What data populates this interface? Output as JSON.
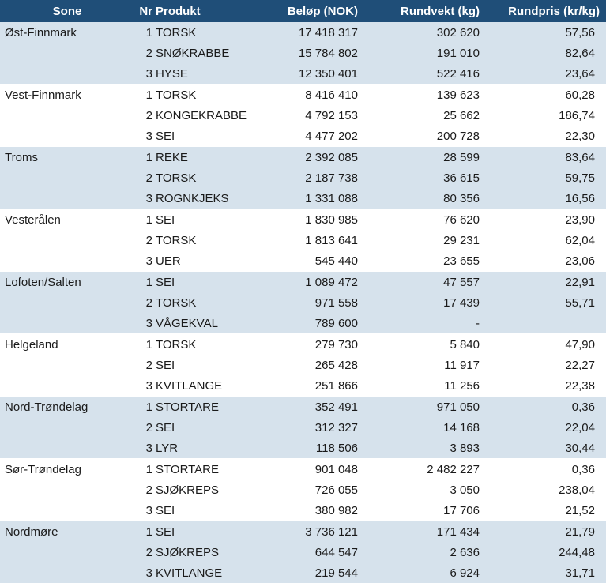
{
  "headers": {
    "sone": "Sone",
    "nr": "Nr",
    "produkt": "Produkt",
    "belop": "Beløp (NOK)",
    "rundvekt": "Rundvekt (kg)",
    "rundpris": "Rundpris (kr/kg)"
  },
  "zones": [
    {
      "sone": "Øst-Finnmark",
      "rows": [
        {
          "nr": "1",
          "produkt": "TORSK",
          "belop": "17 418 317",
          "rundvekt": "302 620",
          "rundpris": "57,56"
        },
        {
          "nr": "2",
          "produkt": "SNØKRABBE",
          "belop": "15 784 802",
          "rundvekt": "191 010",
          "rundpris": "82,64"
        },
        {
          "nr": "3",
          "produkt": "HYSE",
          "belop": "12 350 401",
          "rundvekt": "522 416",
          "rundpris": "23,64"
        }
      ]
    },
    {
      "sone": "Vest-Finnmark",
      "rows": [
        {
          "nr": "1",
          "produkt": "TORSK",
          "belop": "8 416 410",
          "rundvekt": "139 623",
          "rundpris": "60,28"
        },
        {
          "nr": "2",
          "produkt": "KONGEKRABBE",
          "belop": "4 792 153",
          "rundvekt": "25 662",
          "rundpris": "186,74"
        },
        {
          "nr": "3",
          "produkt": "SEI",
          "belop": "4 477 202",
          "rundvekt": "200 728",
          "rundpris": "22,30"
        }
      ]
    },
    {
      "sone": "Troms",
      "rows": [
        {
          "nr": "1",
          "produkt": "REKE",
          "belop": "2 392 085",
          "rundvekt": "28 599",
          "rundpris": "83,64"
        },
        {
          "nr": "2",
          "produkt": "TORSK",
          "belop": "2 187 738",
          "rundvekt": "36 615",
          "rundpris": "59,75"
        },
        {
          "nr": "3",
          "produkt": "ROGNKJEKS",
          "belop": "1 331 088",
          "rundvekt": "80 356",
          "rundpris": "16,56"
        }
      ]
    },
    {
      "sone": "Vesterålen",
      "rows": [
        {
          "nr": "1",
          "produkt": "SEI",
          "belop": "1 830 985",
          "rundvekt": "76 620",
          "rundpris": "23,90"
        },
        {
          "nr": "2",
          "produkt": "TORSK",
          "belop": "1 813 641",
          "rundvekt": "29 231",
          "rundpris": "62,04"
        },
        {
          "nr": "3",
          "produkt": "UER",
          "belop": "545 440",
          "rundvekt": "23 655",
          "rundpris": "23,06"
        }
      ]
    },
    {
      "sone": "Lofoten/Salten",
      "rows": [
        {
          "nr": "1",
          "produkt": "SEI",
          "belop": "1 089 472",
          "rundvekt": "47 557",
          "rundpris": "22,91"
        },
        {
          "nr": "2",
          "produkt": "TORSK",
          "belop": "971 558",
          "rundvekt": "17 439",
          "rundpris": "55,71"
        },
        {
          "nr": "3",
          "produkt": "VÅGEKVAL",
          "belop": "789 600",
          "rundvekt": "-",
          "rundpris": ""
        }
      ]
    },
    {
      "sone": "Helgeland",
      "rows": [
        {
          "nr": "1",
          "produkt": "TORSK",
          "belop": "279 730",
          "rundvekt": "5 840",
          "rundpris": "47,90"
        },
        {
          "nr": "2",
          "produkt": "SEI",
          "belop": "265 428",
          "rundvekt": "11 917",
          "rundpris": "22,27"
        },
        {
          "nr": "3",
          "produkt": "KVITLANGE",
          "belop": "251 866",
          "rundvekt": "11 256",
          "rundpris": "22,38"
        }
      ]
    },
    {
      "sone": "Nord-Trøndelag",
      "rows": [
        {
          "nr": "1",
          "produkt": "STORTARE",
          "belop": "352 491",
          "rundvekt": "971 050",
          "rundpris": "0,36"
        },
        {
          "nr": "2",
          "produkt": "SEI",
          "belop": "312 327",
          "rundvekt": "14 168",
          "rundpris": "22,04"
        },
        {
          "nr": "3",
          "produkt": "LYR",
          "belop": "118 506",
          "rundvekt": "3 893",
          "rundpris": "30,44"
        }
      ]
    },
    {
      "sone": "Sør-Trøndelag",
      "rows": [
        {
          "nr": "1",
          "produkt": "STORTARE",
          "belop": "901 048",
          "rundvekt": "2 482 227",
          "rundpris": "0,36"
        },
        {
          "nr": "2",
          "produkt": "SJØKREPS",
          "belop": "726 055",
          "rundvekt": "3 050",
          "rundpris": "238,04"
        },
        {
          "nr": "3",
          "produkt": "SEI",
          "belop": "380 982",
          "rundvekt": "17 706",
          "rundpris": "21,52"
        }
      ]
    },
    {
      "sone": "Nordmøre",
      "rows": [
        {
          "nr": "1",
          "produkt": "SEI",
          "belop": "3 736 121",
          "rundvekt": "171 434",
          "rundpris": "21,79"
        },
        {
          "nr": "2",
          "produkt": "SJØKREPS",
          "belop": "644 547",
          "rundvekt": "2 636",
          "rundpris": "244,48"
        },
        {
          "nr": "3",
          "produkt": "KVITLANGE",
          "belop": "219 544",
          "rundvekt": "6 924",
          "rundpris": "31,71"
        }
      ]
    }
  ],
  "colors": {
    "header_bg": "#1f4e78",
    "band_shaded": "#d6e2ec",
    "band_plain": "#ffffff"
  }
}
